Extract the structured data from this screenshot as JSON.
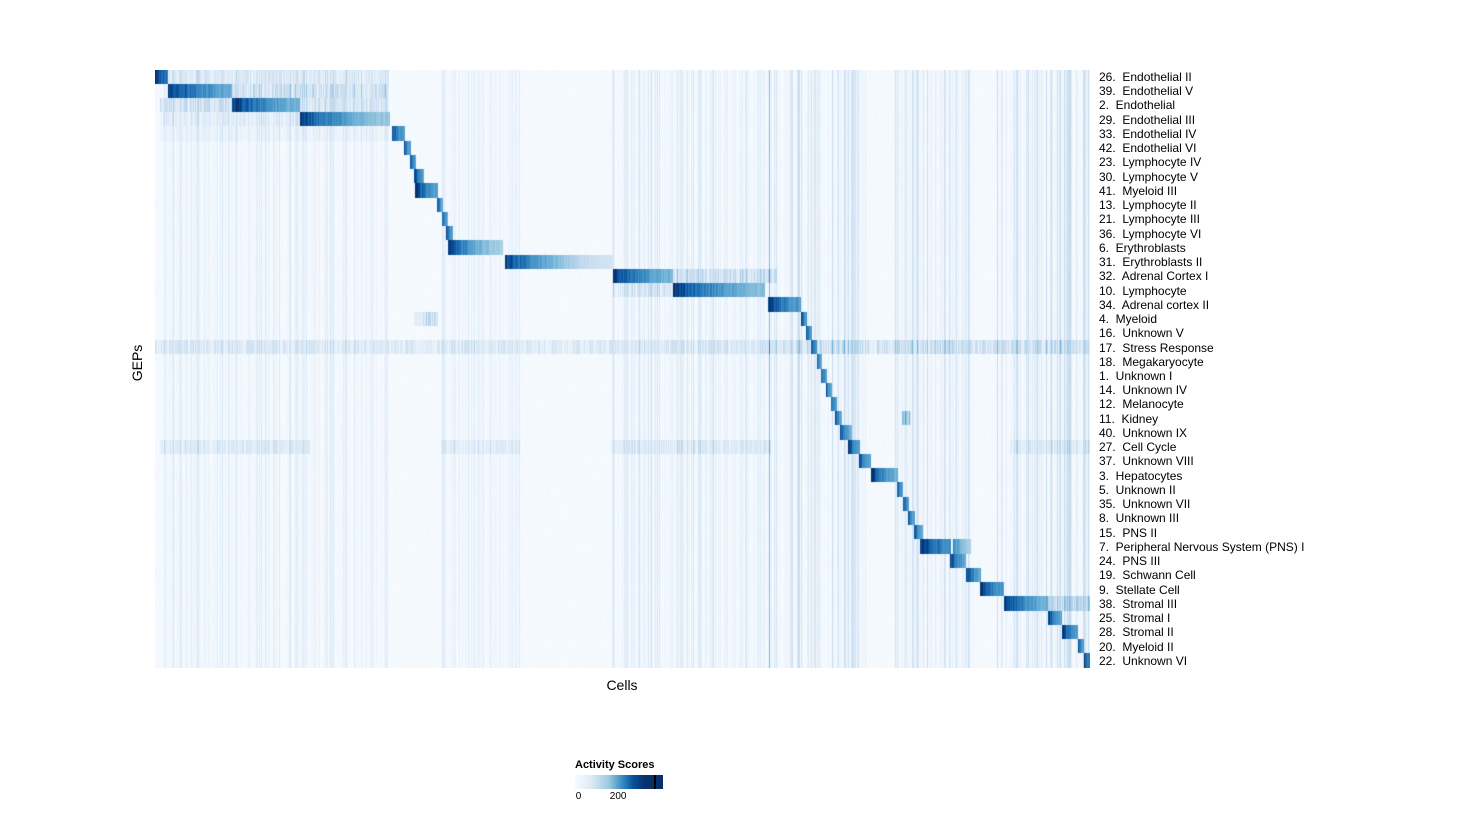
{
  "chart_data": {
    "type": "heatmap",
    "xlabel": "Cells",
    "ylabel": "GEPs",
    "legend": {
      "title": "Activity Scores",
      "ticks": [
        {
          "label": "0",
          "pos": 0.04
        },
        {
          "label": "200",
          "pos": 0.49
        }
      ],
      "tick_line_pos": 0.9,
      "gradient_stops": [
        [
          "#f7fbff",
          0
        ],
        [
          "#deebf7",
          0.18
        ],
        [
          "#9ecae1",
          0.38
        ],
        [
          "#4292c6",
          0.52
        ],
        [
          "#08519c",
          0.66
        ],
        [
          "#08306b",
          0.8
        ],
        [
          "#08306b",
          1
        ]
      ]
    },
    "value_range": [
      0,
      200
    ],
    "colormap": {
      "stops": [
        [
          0,
          "#f7fbff"
        ],
        [
          0.13,
          "#deebf7"
        ],
        [
          0.26,
          "#c6dbef"
        ],
        [
          0.39,
          "#9ecae1"
        ],
        [
          0.52,
          "#6baed6"
        ],
        [
          0.65,
          "#4292c6"
        ],
        [
          0.78,
          "#2171b5"
        ],
        [
          0.9,
          "#08519c"
        ],
        [
          1,
          "#08306b"
        ]
      ]
    },
    "global_stripes": [
      {
        "s": 0.0,
        "e": 0.25,
        "v": 0.06
      },
      {
        "s": 0.305,
        "e": 0.39,
        "v": 0.05
      },
      {
        "s": 0.487,
        "e": 0.658,
        "v": 0.07
      },
      {
        "s": 0.655,
        "e": 0.76,
        "v": 0.1
      },
      {
        "s": 0.79,
        "e": 0.875,
        "v": 0.09
      },
      {
        "s": 0.9,
        "e": 1.0,
        "v": 0.1
      }
    ],
    "rows": [
      {
        "label": "26.  Endothelial II",
        "blocks": [
          {
            "s": 0.0,
            "e": 0.013,
            "v0": 1.0,
            "v1": 0.75
          }
        ],
        "bands": [
          {
            "s": 0.013,
            "e": 0.25,
            "v": 0.2
          }
        ]
      },
      {
        "label": "39.  Endothelial V",
        "blocks": [
          {
            "s": 0.013,
            "e": 0.082,
            "v0": 1.0,
            "v1": 0.55
          }
        ],
        "bands": [
          {
            "s": 0.082,
            "e": 0.25,
            "v": 0.3
          }
        ]
      },
      {
        "label": "2.  Endothelial",
        "blocks": [
          {
            "s": 0.082,
            "e": 0.155,
            "v0": 1.0,
            "v1": 0.5
          }
        ],
        "bands": [
          {
            "s": 0.005,
            "e": 0.082,
            "v": 0.28
          },
          {
            "s": 0.155,
            "e": 0.25,
            "v": 0.25
          }
        ]
      },
      {
        "label": "29.  Endothelial III",
        "blocks": [
          {
            "s": 0.155,
            "e": 0.251,
            "v0": 0.95,
            "v1": 0.4
          }
        ],
        "bands": [
          {
            "s": 0.005,
            "e": 0.155,
            "v": 0.15
          }
        ]
      },
      {
        "label": "33.  Endothelial IV",
        "blocks": [
          {
            "s": 0.253,
            "e": 0.267,
            "v0": 0.95,
            "v1": 0.55
          }
        ],
        "bands": [
          {
            "s": 0.005,
            "e": 0.25,
            "v": 0.08
          }
        ]
      },
      {
        "label": "42.  Endothelial VI",
        "blocks": [
          {
            "s": 0.266,
            "e": 0.273,
            "v0": 0.9,
            "v1": 0.55
          }
        ]
      },
      {
        "label": "23.  Lymphocyte IV",
        "blocks": [
          {
            "s": 0.272,
            "e": 0.279,
            "v0": 0.9,
            "v1": 0.55
          }
        ]
      },
      {
        "label": "30.  Lymphocyte V",
        "blocks": [
          {
            "s": 0.277,
            "e": 0.287,
            "v0": 0.95,
            "v1": 0.6
          }
        ]
      },
      {
        "label": "41.  Myeloid III",
        "blocks": [
          {
            "s": 0.278,
            "e": 0.302,
            "v0": 1.0,
            "v1": 0.55
          }
        ]
      },
      {
        "label": "13.  Lymphocyte II",
        "blocks": [
          {
            "s": 0.301,
            "e": 0.308,
            "v0": 0.9,
            "v1": 0.55
          }
        ]
      },
      {
        "label": "21.  Lymphocyte III",
        "blocks": [
          {
            "s": 0.306,
            "e": 0.313,
            "v0": 0.9,
            "v1": 0.55
          }
        ]
      },
      {
        "label": "36.  Lymphocyte VI",
        "blocks": [
          {
            "s": 0.311,
            "e": 0.318,
            "v0": 0.9,
            "v1": 0.55
          }
        ]
      },
      {
        "label": "6.  Erythroblasts",
        "blocks": [
          {
            "s": 0.313,
            "e": 0.372,
            "v0": 0.95,
            "v1": 0.35
          }
        ]
      },
      {
        "label": "31.  Erythroblasts II",
        "blocks": [
          {
            "s": 0.374,
            "e": 0.489,
            "v0": 0.95,
            "v1": 0.18
          }
        ]
      },
      {
        "label": "32.  Adrenal Cortex I",
        "blocks": [
          {
            "s": 0.489,
            "e": 0.553,
            "v0": 1.0,
            "v1": 0.5
          }
        ],
        "bands": [
          {
            "s": 0.553,
            "e": 0.665,
            "v": 0.3
          }
        ]
      },
      {
        "label": "10.  Lymphocyte",
        "blocks": [
          {
            "s": 0.553,
            "e": 0.652,
            "v0": 1.0,
            "v1": 0.45
          }
        ],
        "bands": [
          {
            "s": 0.489,
            "e": 0.553,
            "v": 0.2
          }
        ]
      },
      {
        "label": "34.  Adrenal cortex II",
        "blocks": [
          {
            "s": 0.655,
            "e": 0.69,
            "v0": 1.0,
            "v1": 0.6
          }
        ]
      },
      {
        "label": "4.  Myeloid",
        "blocks": [
          {
            "s": 0.69,
            "e": 0.697,
            "v0": 0.95,
            "v1": 0.6
          }
        ],
        "bands": [
          {
            "s": 0.276,
            "e": 0.302,
            "v": 0.35
          }
        ]
      },
      {
        "label": "16.  Unknown V",
        "blocks": [
          {
            "s": 0.696,
            "e": 0.702,
            "v0": 0.9,
            "v1": 0.55
          }
        ]
      },
      {
        "label": "17.  Stress Response",
        "blocks": [
          {
            "s": 0.701,
            "e": 0.708,
            "v0": 0.95,
            "v1": 0.6
          }
        ],
        "bands": [
          {
            "s": 0.0,
            "e": 1.0,
            "v": 0.2
          },
          {
            "s": 0.64,
            "e": 1.0,
            "v": 0.08
          }
        ]
      },
      {
        "label": "18.  Megakaryocyte",
        "blocks": [
          {
            "s": 0.707,
            "e": 0.713,
            "v0": 0.9,
            "v1": 0.55
          }
        ]
      },
      {
        "label": "1.  Unknown I",
        "blocks": [
          {
            "s": 0.712,
            "e": 0.718,
            "v0": 0.9,
            "v1": 0.55
          }
        ]
      },
      {
        "label": "14.  Unknown IV",
        "blocks": [
          {
            "s": 0.717,
            "e": 0.723,
            "v0": 0.9,
            "v1": 0.55
          }
        ]
      },
      {
        "label": "12.  Melanocyte",
        "blocks": [
          {
            "s": 0.722,
            "e": 0.729,
            "v0": 0.9,
            "v1": 0.55
          }
        ]
      },
      {
        "label": "11.  Kidney",
        "blocks": [
          {
            "s": 0.727,
            "e": 0.734,
            "v0": 0.9,
            "v1": 0.55
          }
        ],
        "bands": [
          {
            "s": 0.798,
            "e": 0.808,
            "v": 0.45
          }
        ]
      },
      {
        "label": "40.  Unknown IX",
        "blocks": [
          {
            "s": 0.732,
            "e": 0.745,
            "v0": 0.9,
            "v1": 0.5
          }
        ]
      },
      {
        "label": "27.  Cell Cycle",
        "blocks": [
          {
            "s": 0.741,
            "e": 0.754,
            "v0": 1.0,
            "v1": 0.55
          }
        ],
        "bands": [
          {
            "s": 0.005,
            "e": 0.165,
            "v": 0.18
          },
          {
            "s": 0.305,
            "e": 0.39,
            "v": 0.16
          },
          {
            "s": 0.487,
            "e": 0.658,
            "v": 0.18
          },
          {
            "s": 0.914,
            "e": 1.0,
            "v": 0.14
          }
        ]
      },
      {
        "label": "37.  Unknown VIII",
        "blocks": [
          {
            "s": 0.752,
            "e": 0.765,
            "v0": 0.95,
            "v1": 0.55
          }
        ]
      },
      {
        "label": "3.  Hepatocytes",
        "blocks": [
          {
            "s": 0.765,
            "e": 0.794,
            "v0": 1.0,
            "v1": 0.5
          }
        ]
      },
      {
        "label": "5.  Unknown II",
        "blocks": [
          {
            "s": 0.793,
            "e": 0.8,
            "v0": 0.9,
            "v1": 0.55
          }
        ]
      },
      {
        "label": "35.  Unknown VII",
        "blocks": [
          {
            "s": 0.799,
            "e": 0.806,
            "v0": 0.9,
            "v1": 0.55
          }
        ]
      },
      {
        "label": "8.  Unknown III",
        "blocks": [
          {
            "s": 0.805,
            "e": 0.812,
            "v0": 0.9,
            "v1": 0.55
          }
        ]
      },
      {
        "label": "15.  PNS II",
        "blocks": [
          {
            "s": 0.811,
            "e": 0.821,
            "v0": 0.92,
            "v1": 0.55
          }
        ]
      },
      {
        "label": "7.  Peripheral Nervous System (PNS) I",
        "blocks": [
          {
            "s": 0.818,
            "e": 0.851,
            "v0": 1.0,
            "v1": 0.65
          },
          {
            "s": 0.853,
            "e": 0.872,
            "v0": 0.7,
            "v1": 0.35
          }
        ]
      },
      {
        "label": "24.  PNS III",
        "blocks": [
          {
            "s": 0.85,
            "e": 0.867,
            "v0": 0.95,
            "v1": 0.55
          }
        ]
      },
      {
        "label": "19.  Schwann Cell",
        "blocks": [
          {
            "s": 0.867,
            "e": 0.883,
            "v0": 0.95,
            "v1": 0.55
          }
        ]
      },
      {
        "label": "9.  Stellate Cell",
        "blocks": [
          {
            "s": 0.882,
            "e": 0.907,
            "v0": 1.0,
            "v1": 0.6
          }
        ]
      },
      {
        "label": "38.  Stromal III",
        "blocks": [
          {
            "s": 0.907,
            "e": 0.955,
            "v0": 1.0,
            "v1": 0.5
          }
        ],
        "bands": [
          {
            "s": 0.955,
            "e": 1.0,
            "v": 0.35
          }
        ]
      },
      {
        "label": "25.  Stromal I",
        "blocks": [
          {
            "s": 0.955,
            "e": 0.97,
            "v0": 0.95,
            "v1": 0.55
          }
        ]
      },
      {
        "label": "28.  Stromal II",
        "blocks": [
          {
            "s": 0.97,
            "e": 0.987,
            "v0": 1.0,
            "v1": 0.6
          }
        ]
      },
      {
        "label": "20.  Myeloid II",
        "blocks": [
          {
            "s": 0.987,
            "e": 0.993,
            "v0": 0.9,
            "v1": 0.6
          }
        ]
      },
      {
        "label": "22.  Unknown VI",
        "blocks": [
          {
            "s": 0.993,
            "e": 1.0,
            "v0": 1.0,
            "v1": 0.7
          }
        ]
      }
    ]
  }
}
